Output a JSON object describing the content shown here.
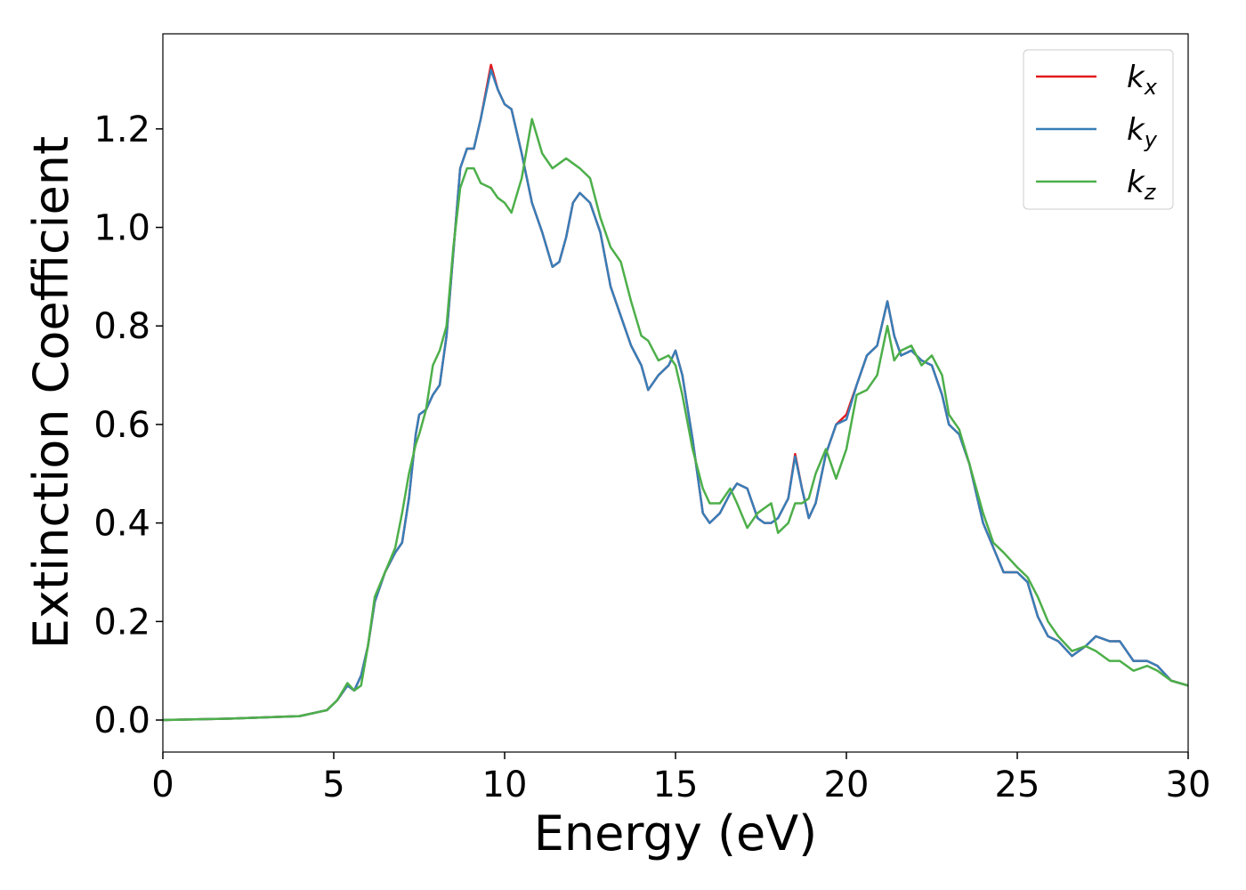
{
  "chart_data": {
    "type": "line",
    "x_label": "Energy (eV)",
    "y_label": "Extinction Coefficient",
    "x": [
      0,
      2,
      4,
      4.8,
      5.1,
      5.4,
      5.6,
      5.8,
      6.0,
      6.2,
      6.5,
      6.8,
      7.0,
      7.2,
      7.4,
      7.5,
      7.7,
      7.9,
      8.1,
      8.3,
      8.5,
      8.7,
      8.9,
      9.1,
      9.3,
      9.6,
      9.8,
      10.0,
      10.2,
      10.5,
      10.8,
      11.1,
      11.4,
      11.6,
      11.8,
      12.0,
      12.2,
      12.5,
      12.8,
      13.1,
      13.4,
      13.7,
      14.0,
      14.2,
      14.5,
      14.8,
      15.0,
      15.2,
      15.5,
      15.8,
      16.0,
      16.3,
      16.6,
      16.8,
      17.1,
      17.4,
      17.6,
      17.8,
      18.0,
      18.3,
      18.5,
      18.7,
      18.9,
      19.1,
      19.4,
      19.7,
      20.0,
      20.3,
      20.6,
      20.9,
      21.2,
      21.4,
      21.6,
      21.9,
      22.2,
      22.5,
      22.8,
      23.0,
      23.3,
      23.6,
      24.0,
      24.3,
      24.6,
      25.0,
      25.3,
      25.6,
      25.9,
      26.2,
      26.6,
      27.0,
      27.3,
      27.7,
      28.0,
      28.4,
      28.8,
      29.1,
      29.5,
      30.0
    ],
    "series": [
      {
        "name": "kx",
        "color": "#e41a1c",
        "values": [
          0,
          0.003,
          0.008,
          0.02,
          0.04,
          0.07,
          0.06,
          0.09,
          0.15,
          0.24,
          0.3,
          0.34,
          0.36,
          0.45,
          0.58,
          0.62,
          0.63,
          0.66,
          0.68,
          0.78,
          0.95,
          1.12,
          1.16,
          1.16,
          1.22,
          1.33,
          1.28,
          1.25,
          1.24,
          1.15,
          1.05,
          0.99,
          0.92,
          0.93,
          0.98,
          1.05,
          1.07,
          1.05,
          0.99,
          0.88,
          0.82,
          0.76,
          0.72,
          0.67,
          0.7,
          0.72,
          0.75,
          0.7,
          0.57,
          0.42,
          0.4,
          0.42,
          0.46,
          0.48,
          0.47,
          0.41,
          0.4,
          0.4,
          0.41,
          0.45,
          0.54,
          0.47,
          0.41,
          0.44,
          0.54,
          0.6,
          0.62,
          0.68,
          0.74,
          0.76,
          0.85,
          0.78,
          0.74,
          0.75,
          0.73,
          0.72,
          0.66,
          0.6,
          0.58,
          0.52,
          0.4,
          0.35,
          0.3,
          0.3,
          0.28,
          0.21,
          0.17,
          0.16,
          0.13,
          0.15,
          0.17,
          0.16,
          0.16,
          0.12,
          0.12,
          0.11,
          0.08,
          0.07
        ]
      },
      {
        "name": "ky",
        "color": "#377eb8",
        "values": [
          0,
          0.003,
          0.008,
          0.02,
          0.04,
          0.07,
          0.06,
          0.09,
          0.15,
          0.24,
          0.3,
          0.34,
          0.36,
          0.45,
          0.58,
          0.62,
          0.63,
          0.66,
          0.68,
          0.78,
          0.95,
          1.12,
          1.16,
          1.16,
          1.22,
          1.32,
          1.28,
          1.25,
          1.24,
          1.15,
          1.05,
          0.99,
          0.92,
          0.93,
          0.98,
          1.05,
          1.07,
          1.05,
          0.99,
          0.88,
          0.82,
          0.76,
          0.72,
          0.67,
          0.7,
          0.72,
          0.75,
          0.7,
          0.57,
          0.42,
          0.4,
          0.42,
          0.46,
          0.48,
          0.47,
          0.41,
          0.4,
          0.4,
          0.41,
          0.45,
          0.535,
          0.47,
          0.41,
          0.44,
          0.54,
          0.6,
          0.61,
          0.68,
          0.74,
          0.76,
          0.85,
          0.78,
          0.74,
          0.75,
          0.73,
          0.72,
          0.66,
          0.6,
          0.58,
          0.52,
          0.4,
          0.35,
          0.3,
          0.3,
          0.28,
          0.21,
          0.17,
          0.16,
          0.13,
          0.15,
          0.17,
          0.16,
          0.16,
          0.12,
          0.12,
          0.11,
          0.08,
          0.07
        ]
      },
      {
        "name": "kz",
        "color": "#4daf4a",
        "values": [
          0,
          0.003,
          0.008,
          0.02,
          0.04,
          0.075,
          0.06,
          0.07,
          0.15,
          0.25,
          0.3,
          0.35,
          0.42,
          0.5,
          0.56,
          0.58,
          0.63,
          0.72,
          0.75,
          0.8,
          0.96,
          1.08,
          1.12,
          1.12,
          1.09,
          1.08,
          1.06,
          1.05,
          1.03,
          1.1,
          1.22,
          1.15,
          1.12,
          1.13,
          1.14,
          1.13,
          1.12,
          1.1,
          1.02,
          0.96,
          0.93,
          0.85,
          0.78,
          0.77,
          0.73,
          0.74,
          0.72,
          0.66,
          0.55,
          0.47,
          0.44,
          0.44,
          0.47,
          0.44,
          0.39,
          0.42,
          0.43,
          0.44,
          0.38,
          0.4,
          0.44,
          0.44,
          0.45,
          0.5,
          0.55,
          0.49,
          0.55,
          0.66,
          0.67,
          0.7,
          0.8,
          0.73,
          0.75,
          0.76,
          0.72,
          0.74,
          0.7,
          0.62,
          0.59,
          0.52,
          0.42,
          0.36,
          0.34,
          0.31,
          0.29,
          0.25,
          0.2,
          0.17,
          0.14,
          0.15,
          0.14,
          0.12,
          0.12,
          0.1,
          0.11,
          0.1,
          0.08,
          0.07
        ]
      }
    ],
    "xlim": [
      0,
      30
    ],
    "xticks": [
      0,
      5,
      10,
      15,
      20,
      25,
      30
    ],
    "ylim": [
      -0.065,
      1.393
    ],
    "yticks": [
      {
        "value": 0,
        "label": "0.0"
      },
      {
        "value": 0.2,
        "label": "0.2"
      },
      {
        "value": 0.4,
        "label": "0.4"
      },
      {
        "value": 0.6,
        "label": "0.6"
      },
      {
        "value": 0.8,
        "label": "0.8"
      },
      {
        "value": 1.0,
        "label": "1.0"
      },
      {
        "value": 1.2,
        "label": "1.2"
      }
    ],
    "legend": "upper right",
    "grid": false
  }
}
